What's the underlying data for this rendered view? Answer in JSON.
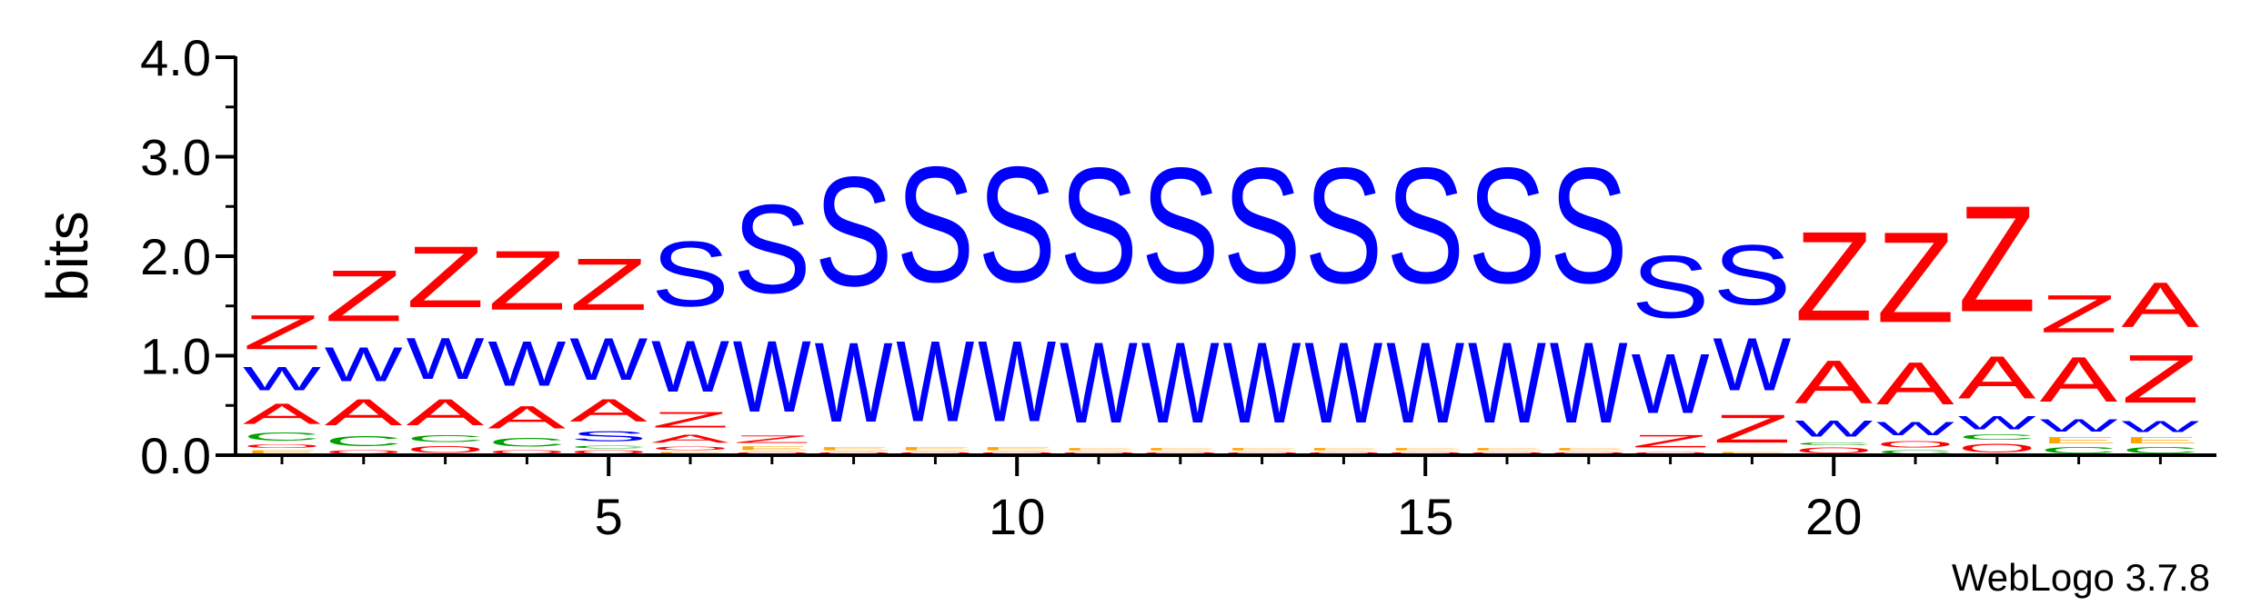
{
  "colors": {
    "S": "#0000ff",
    "W": "#0000ff",
    "Z": "#ff0000",
    "A": "#ff0000",
    "C": "#00a000",
    "O": "#ff0000",
    "E": "#ffa500",
    "axis": "#000000"
  },
  "chart_data": {
    "type": "sequence-logo",
    "ylabel": "bits",
    "ylim": [
      0,
      4.0
    ],
    "yticks": [
      "0.0",
      "1.0",
      "2.0",
      "3.0",
      "4.0"
    ],
    "xticks": [
      "5",
      "10",
      "15",
      "20"
    ],
    "x_positions": [
      1,
      24
    ],
    "footer": "WebLogo 3.7.8",
    "columns": [
      {
        "pos": 1,
        "stack": [
          [
            "E",
            0.06
          ],
          [
            "O",
            0.06
          ],
          [
            "C",
            0.13
          ],
          [
            "A",
            0.33
          ],
          [
            "W",
            0.38
          ],
          [
            "Z",
            0.55
          ]
        ]
      },
      {
        "pos": 2,
        "stack": [
          [
            "O",
            0.06
          ],
          [
            "C",
            0.16
          ],
          [
            "A",
            0.42
          ],
          [
            "W",
            0.55
          ],
          [
            "Z",
            0.82
          ]
        ]
      },
      {
        "pos": 3,
        "stack": [
          [
            "O",
            0.11
          ],
          [
            "C",
            0.11
          ],
          [
            "A",
            0.42
          ],
          [
            "W",
            0.66
          ],
          [
            "Z",
            0.98
          ]
        ]
      },
      {
        "pos": 4,
        "stack": [
          [
            "O",
            0.06
          ],
          [
            "C",
            0.14
          ],
          [
            "A",
            0.36
          ],
          [
            "W",
            0.72
          ],
          [
            "Z",
            0.95
          ]
        ]
      },
      {
        "pos": 5,
        "stack": [
          [
            "O",
            0.06
          ],
          [
            "C",
            0.05
          ],
          [
            "S",
            0.16
          ],
          [
            "A",
            0.36
          ],
          [
            "W",
            0.67
          ],
          [
            "Z",
            0.83
          ]
        ]
      },
      {
        "pos": 6,
        "stack": [
          [
            "E",
            0.04
          ],
          [
            "O",
            0.06
          ],
          [
            "A",
            0.13
          ],
          [
            "Z",
            0.25
          ],
          [
            "W",
            0.82
          ],
          [
            "S",
            1.04
          ]
        ]
      },
      {
        "pos": 7,
        "stack": [
          [
            "O",
            0.04
          ],
          [
            "E",
            0.06
          ],
          [
            "Z",
            0.12
          ],
          [
            "W",
            1.14
          ],
          [
            "S",
            1.42
          ]
        ]
      },
      {
        "pos": 8,
        "stack": [
          [
            "O",
            0.04
          ],
          [
            "E",
            0.05
          ],
          [
            "W",
            1.28
          ],
          [
            "S",
            1.75
          ]
        ]
      },
      {
        "pos": 9,
        "stack": [
          [
            "O",
            0.04
          ],
          [
            "E",
            0.05
          ],
          [
            "W",
            1.3
          ],
          [
            "S",
            1.85
          ]
        ]
      },
      {
        "pos": 10,
        "stack": [
          [
            "O",
            0.04
          ],
          [
            "E",
            0.05
          ],
          [
            "W",
            1.3
          ],
          [
            "S",
            1.85
          ]
        ]
      },
      {
        "pos": 11,
        "stack": [
          [
            "O",
            0.04
          ],
          [
            "E",
            0.04
          ],
          [
            "W",
            1.3
          ],
          [
            "S",
            1.85
          ]
        ]
      },
      {
        "pos": 12,
        "stack": [
          [
            "O",
            0.04
          ],
          [
            "E",
            0.04
          ],
          [
            "W",
            1.3
          ],
          [
            "S",
            1.85
          ]
        ]
      },
      {
        "pos": 13,
        "stack": [
          [
            "O",
            0.04
          ],
          [
            "E",
            0.04
          ],
          [
            "W",
            1.3
          ],
          [
            "S",
            1.85
          ]
        ]
      },
      {
        "pos": 14,
        "stack": [
          [
            "O",
            0.04
          ],
          [
            "E",
            0.04
          ],
          [
            "W",
            1.3
          ],
          [
            "S",
            1.85
          ]
        ]
      },
      {
        "pos": 15,
        "stack": [
          [
            "O",
            0.04
          ],
          [
            "E",
            0.04
          ],
          [
            "W",
            1.3
          ],
          [
            "S",
            1.85
          ]
        ]
      },
      {
        "pos": 16,
        "stack": [
          [
            "O",
            0.04
          ],
          [
            "E",
            0.04
          ],
          [
            "W",
            1.3
          ],
          [
            "S",
            1.85
          ]
        ]
      },
      {
        "pos": 17,
        "stack": [
          [
            "O",
            0.04
          ],
          [
            "E",
            0.04
          ],
          [
            "W",
            1.3
          ],
          [
            "S",
            1.85
          ]
        ]
      },
      {
        "pos": 18,
        "stack": [
          [
            "O",
            0.04
          ],
          [
            "Z",
            0.2
          ],
          [
            "W",
            0.95
          ],
          [
            "S",
            1.0
          ]
        ]
      },
      {
        "pos": 19,
        "stack": [
          [
            "E",
            0.04
          ],
          [
            "Z",
            0.45
          ],
          [
            "W",
            0.84
          ],
          [
            "S",
            0.96
          ]
        ]
      },
      {
        "pos": 20,
        "stack": [
          [
            "O",
            0.09
          ],
          [
            "C",
            0.05
          ],
          [
            "W",
            0.25
          ],
          [
            "A",
            0.69
          ],
          [
            "Z",
            1.43
          ]
        ]
      },
      {
        "pos": 21,
        "stack": [
          [
            "C",
            0.06
          ],
          [
            "O",
            0.1
          ],
          [
            "W",
            0.22
          ],
          [
            "A",
            0.68
          ],
          [
            "Z",
            1.45
          ]
        ]
      },
      {
        "pos": 22,
        "stack": [
          [
            "O",
            0.14
          ],
          [
            "C",
            0.08
          ],
          [
            "W",
            0.22
          ],
          [
            "A",
            0.68
          ],
          [
            "Z",
            1.7
          ]
        ]
      },
      {
        "pos": 23,
        "stack": [
          [
            "C",
            0.1
          ],
          [
            "E",
            0.1
          ],
          [
            "W",
            0.2
          ],
          [
            "A",
            0.72
          ],
          [
            "Z",
            0.6
          ]
        ]
      },
      {
        "pos": 24,
        "stack": [
          [
            "C",
            0.1
          ],
          [
            "E",
            0.1
          ],
          [
            "W",
            0.18
          ],
          [
            "Z",
            0.77
          ],
          [
            "A",
            0.72
          ]
        ]
      }
    ]
  }
}
